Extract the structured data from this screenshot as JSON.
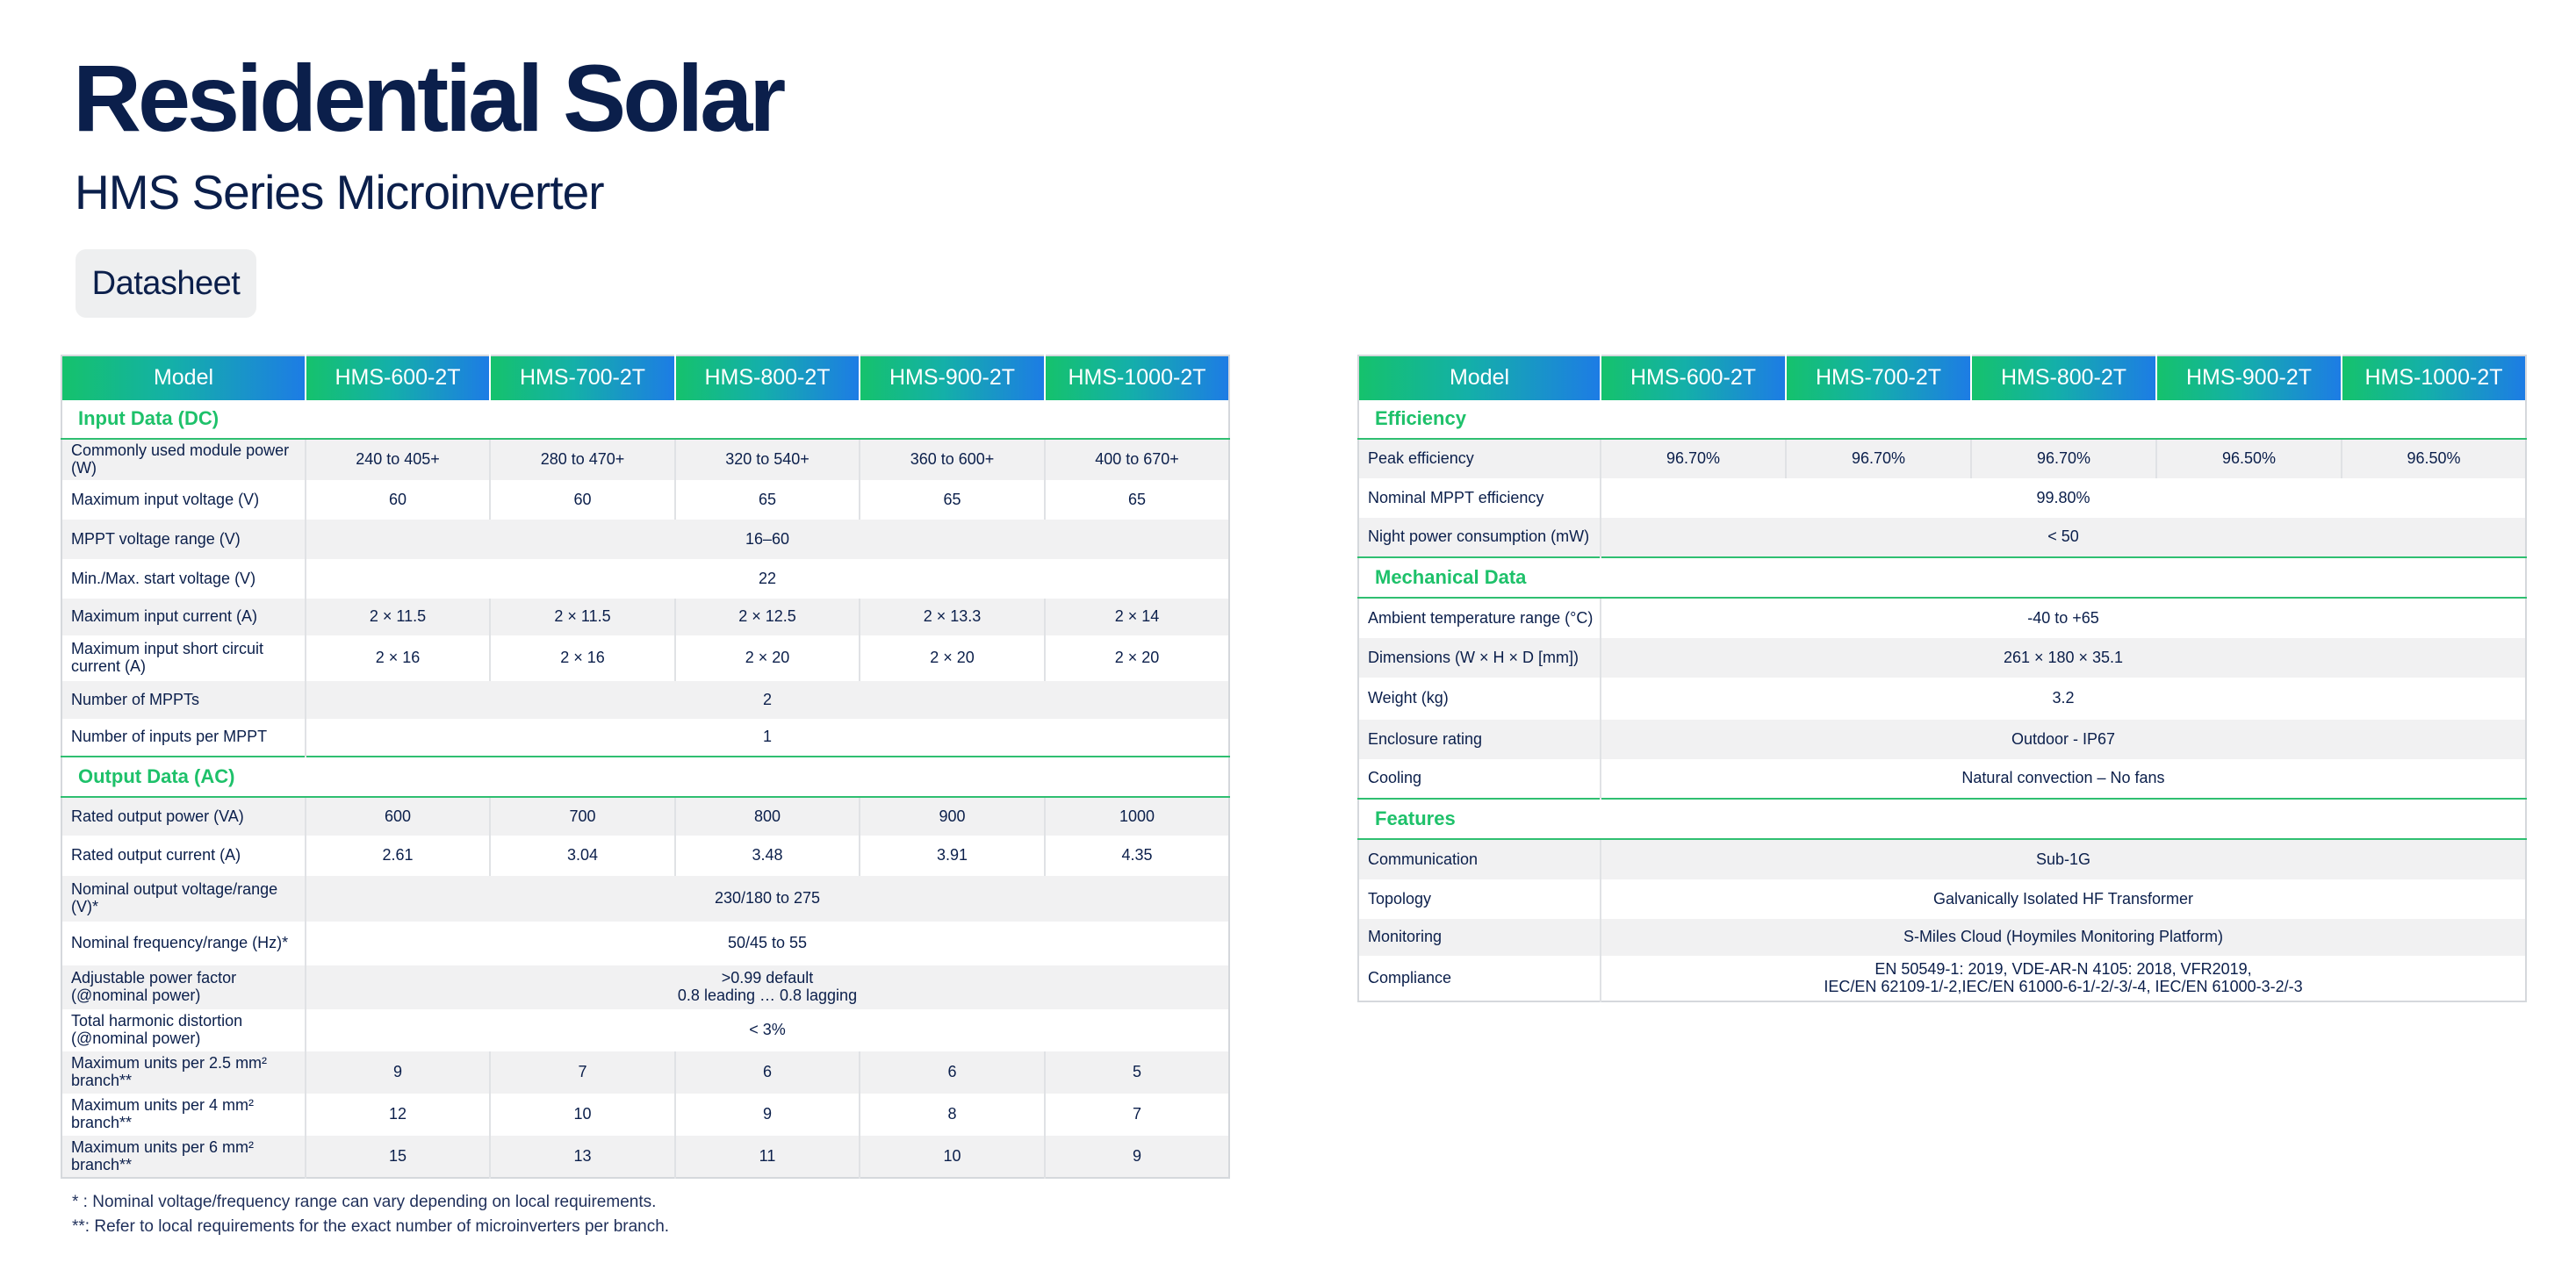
{
  "header": {
    "title": "Residential Solar",
    "subtitle": "HMS Series Microinverter",
    "badge": "Datasheet"
  },
  "columns": [
    "Model",
    "HMS-600-2T",
    "HMS-700-2T",
    "HMS-800-2T",
    "HMS-900-2T",
    "HMS-1000-2T"
  ],
  "left_table": {
    "input_section": "Input Data (DC)",
    "input_rows": [
      {
        "label": "Commonly used module power (W)",
        "values": [
          "240 to 405+",
          "280 to 470+",
          "320 to 540+",
          "360 to 600+",
          "400 to 670+"
        ]
      },
      {
        "label": "Maximum input voltage (V)",
        "values": [
          "60",
          "60",
          "65",
          "65",
          "65"
        ]
      },
      {
        "label": "MPPT voltage range (V)",
        "value": "16–60"
      },
      {
        "label": "Min./Max. start voltage (V)",
        "value": "22"
      },
      {
        "label": "Maximum input current (A)",
        "values": [
          "2 × 11.5",
          "2 × 11.5",
          "2 × 12.5",
          "2 × 13.3",
          "2 × 14"
        ]
      },
      {
        "label": "Maximum input short circuit current (A)",
        "values": [
          "2 × 16",
          "2 × 16",
          "2 × 20",
          "2 × 20",
          "2 × 20"
        ]
      },
      {
        "label": "Number of MPPTs",
        "value": "2"
      },
      {
        "label": "Number of inputs per MPPT",
        "value": "1"
      }
    ],
    "output_section": "Output Data (AC)",
    "output_rows": [
      {
        "label": "Rated output power (VA)",
        "values": [
          "600",
          "700",
          "800",
          "900",
          "1000"
        ]
      },
      {
        "label": "Rated output current (A)",
        "values": [
          "2.61",
          "3.04",
          "3.48",
          "3.91",
          "4.35"
        ]
      },
      {
        "label": "Nominal output voltage/range (V)*",
        "value": "230/180 to 275"
      },
      {
        "label": "Nominal frequency/range (Hz)*",
        "value": "50/45 to 55"
      },
      {
        "label": "Adjustable power factor (@nominal power)",
        "value": ">0.99 default",
        "value2": "0.8 leading … 0.8 lagging"
      },
      {
        "label": "Total harmonic distortion (@nominal power)",
        "value": "< 3%"
      },
      {
        "label": "Maximum units per 2.5 mm² branch**",
        "values": [
          "9",
          "7",
          "6",
          "6",
          "5"
        ]
      },
      {
        "label": "Maximum units per 4 mm² branch**",
        "values": [
          "12",
          "10",
          "9",
          "8",
          "7"
        ]
      },
      {
        "label": "Maximum units per 6 mm² branch**",
        "values": [
          "15",
          "13",
          "11",
          "10",
          "9"
        ]
      }
    ]
  },
  "right_table": {
    "efficiency_section": "Efficiency",
    "efficiency_rows": [
      {
        "label": "Peak efficiency",
        "values": [
          "96.70%",
          "96.70%",
          "96.70%",
          "96.50%",
          "96.50%"
        ]
      },
      {
        "label": "Nominal MPPT efficiency",
        "value": "99.80%"
      },
      {
        "label": "Night power consumption (mW)",
        "value": "< 50"
      }
    ],
    "mechanical_section": "Mechanical Data",
    "mechanical_rows": [
      {
        "label": "Ambient temperature range (°C)",
        "value": "-40 to +65"
      },
      {
        "label": "Dimensions (W × H × D [mm])",
        "value": "261 × 180 × 35.1"
      },
      {
        "label": "Weight (kg)",
        "value": "3.2"
      },
      {
        "label": "Enclosure rating",
        "value": "Outdoor - IP67"
      },
      {
        "label": "Cooling",
        "value": "Natural convection – No fans"
      }
    ],
    "features_section": "Features",
    "features_rows": [
      {
        "label": "Communication",
        "value": "Sub-1G"
      },
      {
        "label": "Topology",
        "value": "Galvanically Isolated HF Transformer"
      },
      {
        "label": "Monitoring",
        "value": "S-Miles Cloud (Hoymiles Monitoring Platform)"
      },
      {
        "label": "Compliance",
        "value": "EN 50549-1: 2019, VDE-AR-N 4105: 2018, VFR2019,",
        "value2": "IEC/EN 62109-1/-2,IEC/EN 61000-6-1/-2/-3/-4, IEC/EN 61000-3-2/-3"
      }
    ]
  },
  "footnotes": [
    "*  : Nominal voltage/frequency range can vary depending on local requirements.",
    "**: Refer to local requirements for the exact number of microinverters per branch."
  ]
}
